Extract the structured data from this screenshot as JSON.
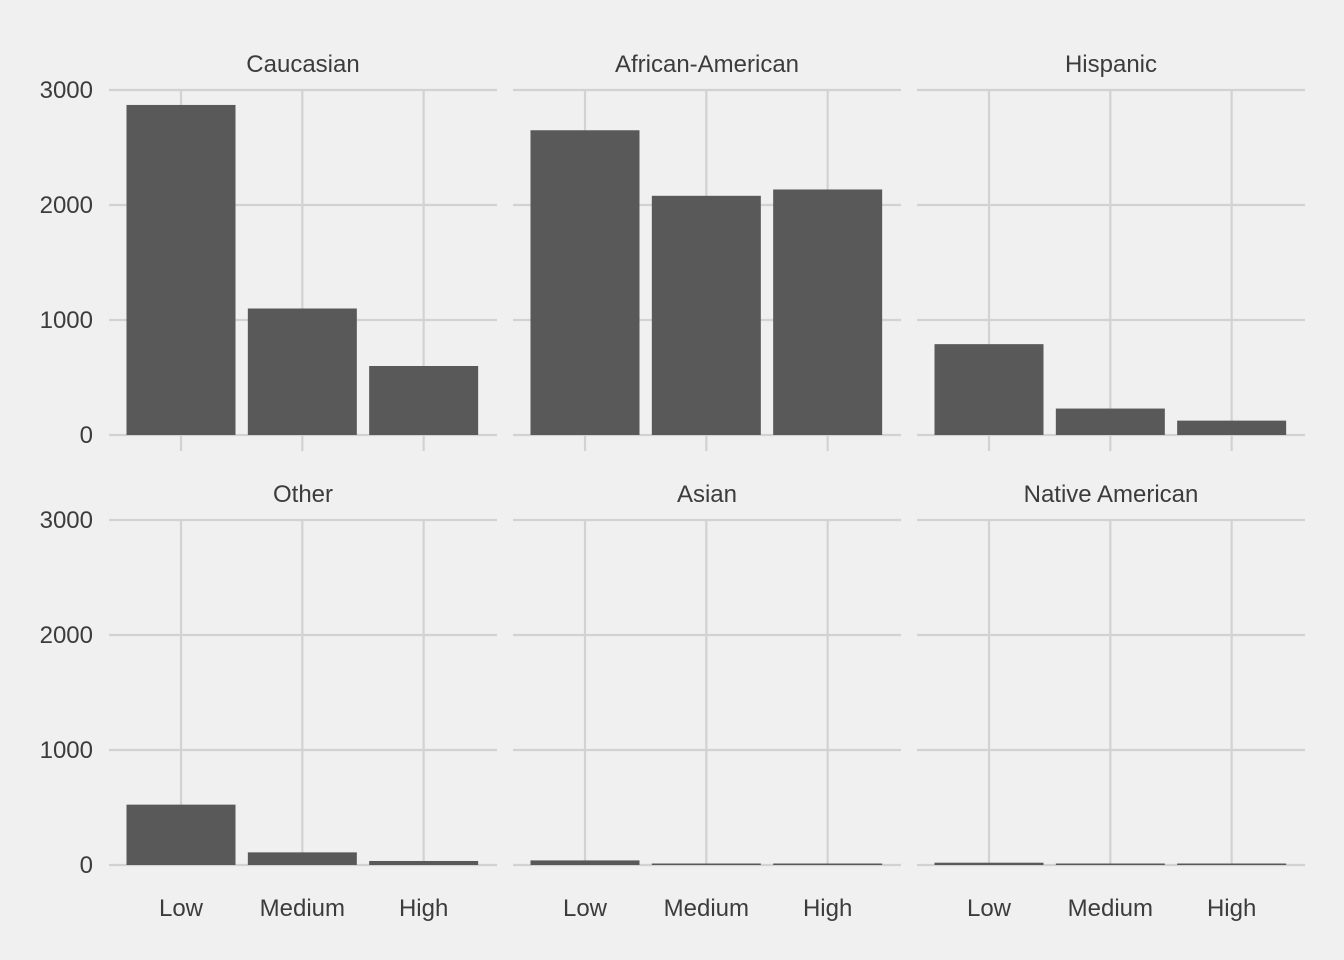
{
  "chart_data": {
    "type": "bar",
    "layout": "facet-grid 2x3, shared y-axis",
    "categories": [
      "Low",
      "Medium",
      "High"
    ],
    "ylim": [
      0,
      3000
    ],
    "yticks": [
      0,
      1000,
      2000,
      3000
    ],
    "grid": true,
    "legend": "none",
    "colors": {
      "background": "#f0f0f0",
      "bar": "#595959",
      "grid": "#d2d2d2",
      "text": "#3c3c3c"
    },
    "panels": [
      {
        "name": "Caucasian",
        "values": [
          2870,
          1100,
          600
        ]
      },
      {
        "name": "African-American",
        "values": [
          2650,
          2080,
          2135
        ]
      },
      {
        "name": "Hispanic",
        "values": [
          790,
          230,
          125
        ]
      },
      {
        "name": "Other",
        "values": [
          525,
          110,
          35
        ]
      },
      {
        "name": "Asian",
        "values": [
          40,
          6,
          4
        ]
      },
      {
        "name": "Native American",
        "values": [
          20,
          12,
          4
        ]
      }
    ]
  }
}
